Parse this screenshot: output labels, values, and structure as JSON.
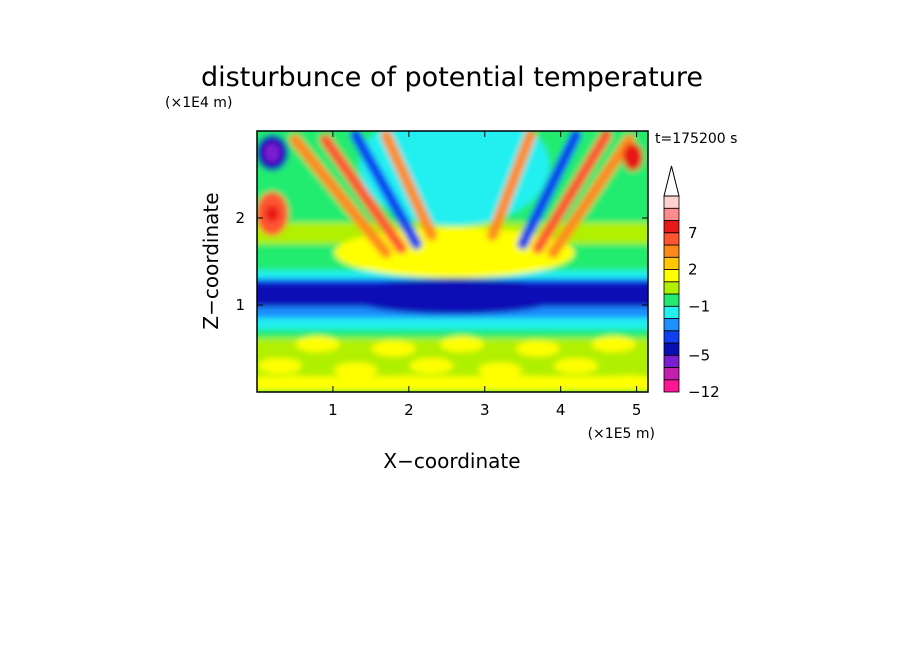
{
  "chart_data": {
    "type": "heatmap",
    "title": "disturbunce of potential temperature",
    "xlabel": "X−coordinate",
    "ylabel": "Z−coordinate",
    "x_unit": "(×1E5 m)",
    "y_unit": "(×1E4 m)",
    "time_label": "t=175200 s",
    "xlim": [
      0,
      5.15
    ],
    "ylim": [
      0,
      3.0
    ],
    "x_ticks": [
      1,
      2,
      3,
      4,
      5
    ],
    "x_tick_labels": [
      "1",
      "2",
      "3",
      "4",
      "5"
    ],
    "y_ticks": [
      1,
      2
    ],
    "y_tick_labels": [
      "1",
      "2"
    ],
    "colorbar": {
      "levels": [
        -12,
        -9,
        -7,
        -5,
        -4,
        -3,
        -2,
        -1,
        0,
        1,
        2,
        3,
        5,
        7,
        9,
        12
      ],
      "tick_values": [
        -12,
        -5,
        -1,
        2,
        7
      ],
      "tick_labels": [
        "−12",
        "−5",
        "−1",
        "2",
        "7"
      ],
      "colors": [
        "#ff1493",
        "#c41fae",
        "#7a1fd0",
        "#0a0fb5",
        "#1040f0",
        "#1c90ff",
        "#24f0f0",
        "#22ec70",
        "#b0f000",
        "#ffff00",
        "#ffc800",
        "#ff8a1a",
        "#ff5530",
        "#e81818",
        "#ff8c8c",
        "#ffd0d0"
      ],
      "extend_max": true
    },
    "grid": false
  }
}
